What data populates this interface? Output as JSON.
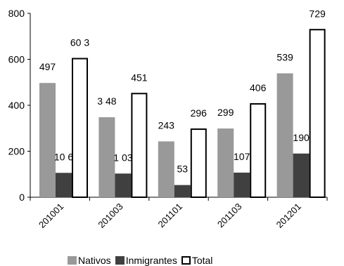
{
  "chart_data": {
    "type": "bar",
    "categories": [
      "201001",
      "201003",
      "201101",
      "201103",
      "201201"
    ],
    "series": [
      {
        "name": "Nativos",
        "values": [
          497,
          348,
          243,
          299,
          539
        ],
        "labels": [
          "497",
          "3 48",
          "243",
          "299",
          "539"
        ],
        "color": "#999999"
      },
      {
        "name": "Inmigrantes",
        "values": [
          106,
          103,
          53,
          107,
          190
        ],
        "labels": [
          "10 6",
          "1 03",
          "53",
          "107",
          "190"
        ],
        "color": "#404040"
      },
      {
        "name": "Total",
        "values": [
          603,
          451,
          296,
          406,
          729
        ],
        "labels": [
          "60 3",
          "451",
          "296",
          "406",
          "729"
        ],
        "color": "#ffffff"
      }
    ],
    "yticks": [
      "0",
      "200",
      "400",
      "600",
      "800"
    ],
    "ylim": [
      0,
      800
    ],
    "legend_position": "bottom",
    "grid": false
  }
}
